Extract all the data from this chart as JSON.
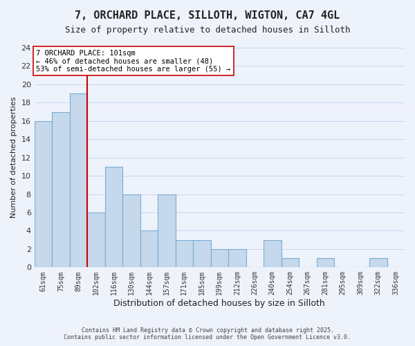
{
  "title": "7, ORCHARD PLACE, SILLOTH, WIGTON, CA7 4GL",
  "subtitle": "Size of property relative to detached houses in Silloth",
  "xlabel": "Distribution of detached houses by size in Silloth",
  "ylabel": "Number of detached properties",
  "bar_labels": [
    "61sqm",
    "75sqm",
    "89sqm",
    "102sqm",
    "116sqm",
    "130sqm",
    "144sqm",
    "157sqm",
    "171sqm",
    "185sqm",
    "199sqm",
    "212sqm",
    "226sqm",
    "240sqm",
    "254sqm",
    "267sqm",
    "281sqm",
    "295sqm",
    "309sqm",
    "322sqm",
    "336sqm"
  ],
  "bar_values": [
    16,
    17,
    19,
    6,
    11,
    8,
    4,
    8,
    3,
    3,
    2,
    2,
    0,
    3,
    1,
    0,
    1,
    0,
    0,
    1,
    0
  ],
  "bar_color": "#c5d8ec",
  "bar_edge_color": "#7aadd4",
  "vline_x_idx": 3,
  "vline_color": "#cc0000",
  "annotation_text": "7 ORCHARD PLACE: 101sqm\n← 46% of detached houses are smaller (48)\n53% of semi-detached houses are larger (55) →",
  "annotation_box_color": "#ffffff",
  "annotation_box_edge": "#cc0000",
  "ylim": [
    0,
    24
  ],
  "yticks": [
    0,
    2,
    4,
    6,
    8,
    10,
    12,
    14,
    16,
    18,
    20,
    22,
    24
  ],
  "grid_color": "#c8d8f0",
  "background_color": "#eef2fb",
  "footer": "Contains HM Land Registry data © Crown copyright and database right 2025.\nContains public sector information licensed under the Open Government Licence v3.0.",
  "title_fontsize": 11,
  "subtitle_fontsize": 9,
  "annotation_fontsize": 7.5,
  "footer_fontsize": 6.0
}
